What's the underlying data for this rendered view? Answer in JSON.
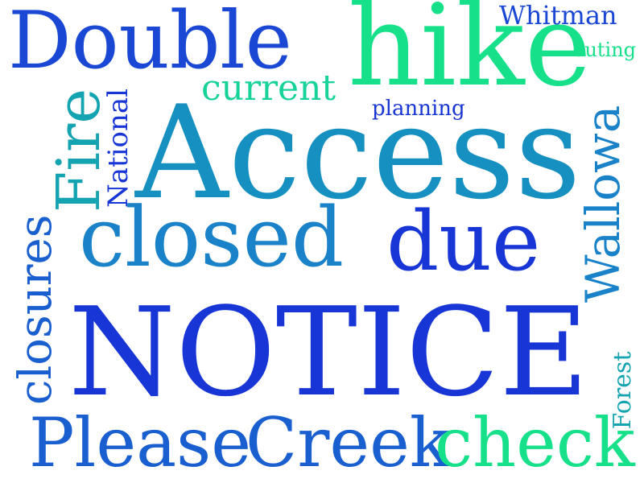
{
  "words": {
    "notice": "NOTICE",
    "access": "Access",
    "hike": "hike",
    "double": "Double",
    "closed": "closed",
    "due": "due",
    "please": "Please",
    "creek": "Creek",
    "check": "check",
    "current": "current",
    "fire": "Fire",
    "wallowa": "Wallowa",
    "closures": "closures",
    "national": "National",
    "whitman": "Whitman",
    "outing": "outing",
    "planning": "planning",
    "forest": "Forest"
  },
  "colors": {
    "blue": "#1836d6",
    "royal_blue": "#1a5fd0",
    "teal": "#1688b8",
    "cyan": "#14a3b0",
    "green": "#17e08a"
  }
}
